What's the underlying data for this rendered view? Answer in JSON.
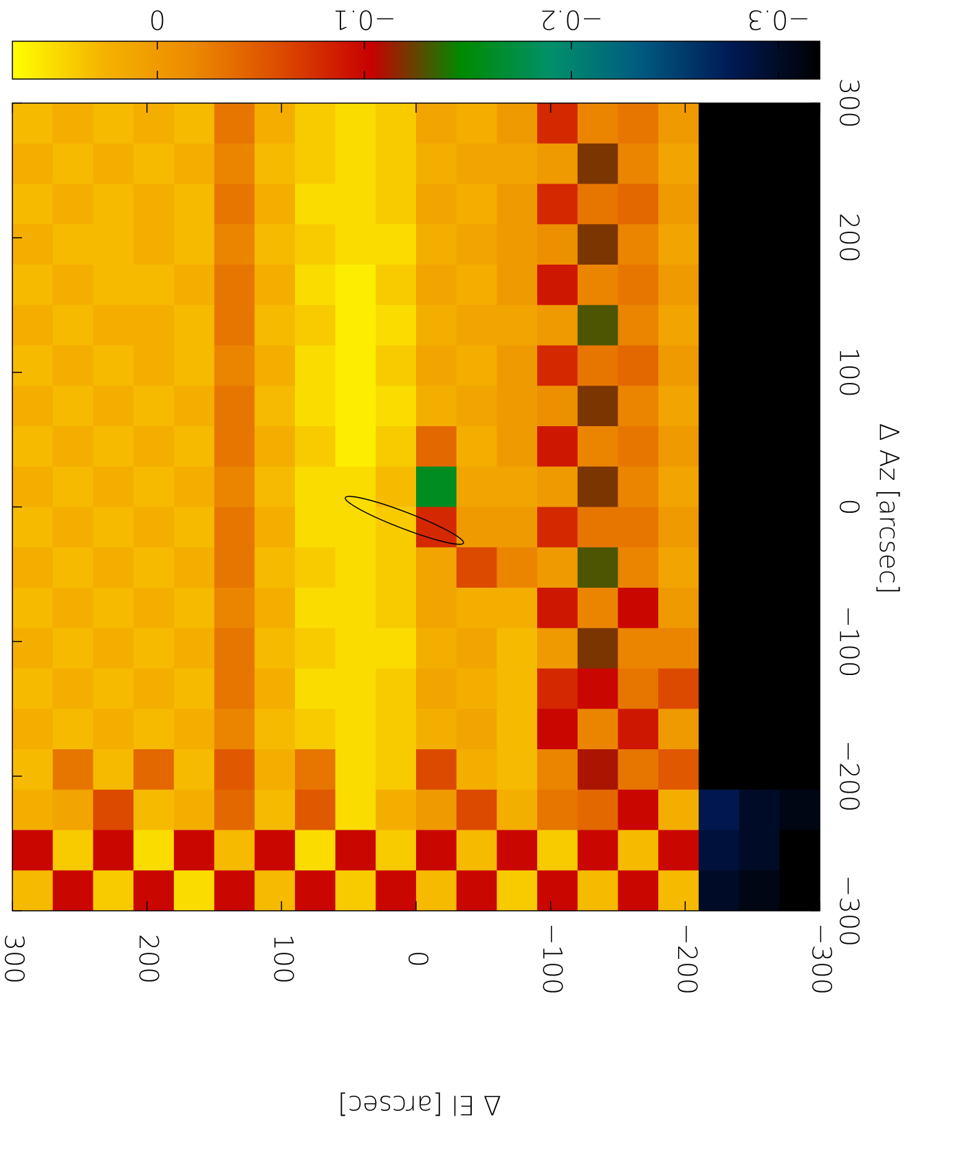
{
  "chart_data": {
    "type": "heatmap",
    "xlabel": "Δ El [arcsec]",
    "ylabel": "Δ Az [arcsec]",
    "xlim": [
      300,
      -300
    ],
    "ylim": [
      -300,
      300
    ],
    "xticks": [
      300,
      200,
      100,
      0,
      {
        "value": -100,
        "label": "−100"
      },
      {
        "value": -200,
        "label": "−200"
      },
      {
        "value": -300,
        "label": "−300"
      }
    ],
    "yticks": [
      {
        "value": -300,
        "label": "−300"
      },
      {
        "value": -200,
        "label": "−200"
      },
      {
        "value": -100,
        "label": "−100"
      },
      0,
      100,
      200,
      300
    ],
    "x": [
      285,
      255,
      225,
      195,
      165,
      135,
      105,
      75,
      45,
      15,
      -15,
      -45,
      -75,
      -105,
      -135,
      -165,
      -195,
      -225,
      -255,
      -285
    ],
    "y": [
      285,
      255,
      225,
      195,
      165,
      135,
      105,
      75,
      45,
      15,
      -15,
      -45,
      -75,
      -105,
      -135,
      -165,
      -195,
      -225,
      -255,
      -285
    ],
    "z": [
      [
        0.03,
        0.02,
        0.03,
        0.02,
        0.03,
        -0.03,
        0.02,
        0.04,
        0.05,
        0.04,
        0.01,
        0.02,
        0.0,
        -0.08,
        -0.02,
        -0.03,
        0.0,
        -0.32,
        -0.32,
        -0.32
      ],
      [
        0.02,
        0.03,
        0.02,
        0.03,
        0.02,
        -0.02,
        0.03,
        0.04,
        0.05,
        0.04,
        0.02,
        0.01,
        0.01,
        0.0,
        -0.12,
        -0.02,
        0.01,
        -0.32,
        -0.32,
        -0.32
      ],
      [
        0.03,
        0.02,
        0.03,
        0.02,
        0.03,
        -0.03,
        0.02,
        0.05,
        0.05,
        0.04,
        0.01,
        0.02,
        0.0,
        -0.08,
        -0.03,
        -0.04,
        0.0,
        -0.32,
        -0.32,
        -0.32
      ],
      [
        0.02,
        0.03,
        0.03,
        0.02,
        0.03,
        -0.02,
        0.03,
        0.04,
        0.05,
        0.05,
        0.02,
        0.01,
        0.0,
        -0.01,
        -0.12,
        -0.02,
        0.01,
        -0.32,
        -0.32,
        -0.32
      ],
      [
        0.03,
        0.02,
        0.03,
        0.03,
        0.02,
        -0.03,
        0.02,
        0.05,
        0.06,
        0.04,
        0.01,
        0.02,
        0.0,
        -0.09,
        -0.02,
        -0.03,
        0.0,
        -0.32,
        -0.32,
        -0.32
      ],
      [
        0.02,
        0.03,
        0.02,
        0.02,
        0.03,
        -0.03,
        0.03,
        0.04,
        0.06,
        0.05,
        0.02,
        0.01,
        0.01,
        0.0,
        -0.13,
        -0.02,
        0.01,
        -0.32,
        -0.32,
        -0.32
      ],
      [
        0.03,
        0.02,
        0.03,
        0.02,
        0.03,
        -0.02,
        0.02,
        0.05,
        0.06,
        0.04,
        0.01,
        0.02,
        0.0,
        -0.08,
        -0.03,
        -0.04,
        0.0,
        -0.32,
        -0.32,
        -0.32
      ],
      [
        0.02,
        0.03,
        0.02,
        0.03,
        0.02,
        -0.03,
        0.03,
        0.05,
        0.06,
        0.05,
        0.02,
        0.01,
        0.0,
        -0.01,
        -0.12,
        -0.02,
        0.01,
        -0.32,
        -0.32,
        -0.32
      ],
      [
        0.03,
        0.02,
        0.03,
        0.02,
        0.03,
        -0.03,
        0.02,
        0.04,
        0.06,
        0.04,
        -0.04,
        0.02,
        0.0,
        -0.09,
        -0.02,
        -0.03,
        0.0,
        -0.32,
        -0.32,
        -0.32
      ],
      [
        0.02,
        0.03,
        0.02,
        0.03,
        0.02,
        -0.02,
        0.03,
        0.05,
        0.05,
        0.03,
        -0.16,
        0.01,
        0.01,
        0.0,
        -0.12,
        -0.02,
        0.01,
        -0.32,
        -0.32,
        -0.32
      ],
      [
        0.03,
        0.02,
        0.03,
        0.02,
        0.03,
        -0.03,
        0.02,
        0.05,
        0.05,
        0.04,
        -0.08,
        0.0,
        0.0,
        -0.08,
        -0.03,
        -0.03,
        0.0,
        -0.32,
        -0.32,
        -0.32
      ],
      [
        0.02,
        0.03,
        0.02,
        0.03,
        0.02,
        -0.03,
        0.03,
        0.04,
        0.05,
        0.04,
        0.01,
        -0.06,
        -0.02,
        0.0,
        -0.13,
        -0.02,
        0.01,
        -0.32,
        -0.32,
        -0.32
      ],
      [
        0.03,
        0.02,
        0.03,
        0.02,
        0.03,
        -0.02,
        0.02,
        0.05,
        0.05,
        0.04,
        0.01,
        0.02,
        0.02,
        -0.09,
        -0.02,
        -0.1,
        0.0,
        -0.32,
        -0.32,
        -0.32
      ],
      [
        0.02,
        0.03,
        0.02,
        0.03,
        0.02,
        -0.03,
        0.03,
        0.04,
        0.05,
        0.05,
        0.02,
        0.01,
        0.03,
        0.0,
        -0.12,
        -0.02,
        -0.02,
        -0.32,
        -0.32,
        -0.32
      ],
      [
        0.03,
        0.02,
        0.03,
        0.02,
        0.03,
        -0.03,
        0.02,
        0.05,
        0.05,
        0.04,
        0.01,
        0.02,
        0.03,
        -0.08,
        -0.1,
        -0.03,
        -0.06,
        -0.32,
        -0.32,
        -0.32
      ],
      [
        0.02,
        0.03,
        0.02,
        0.03,
        0.02,
        -0.02,
        0.03,
        0.04,
        0.05,
        0.04,
        0.02,
        0.01,
        0.03,
        -0.1,
        -0.02,
        -0.09,
        0.0,
        -0.32,
        -0.32,
        -0.32
      ],
      [
        0.03,
        -0.03,
        0.03,
        -0.04,
        0.03,
        -0.05,
        0.02,
        -0.03,
        0.05,
        0.04,
        -0.06,
        0.02,
        0.03,
        -0.02,
        -0.11,
        -0.03,
        -0.05,
        -0.32,
        -0.32,
        -0.32
      ],
      [
        0.02,
        0.01,
        -0.06,
        0.03,
        0.02,
        -0.04,
        0.03,
        -0.05,
        0.05,
        0.02,
        0.0,
        -0.06,
        0.02,
        -0.03,
        -0.04,
        -0.1,
        0.02,
        -0.28,
        -0.3,
        -0.31
      ],
      [
        -0.1,
        0.04,
        -0.1,
        0.05,
        -0.1,
        0.03,
        -0.1,
        0.05,
        -0.1,
        0.04,
        -0.1,
        0.03,
        -0.1,
        0.04,
        -0.1,
        0.03,
        -0.1,
        -0.29,
        -0.3,
        -0.32
      ],
      [
        0.03,
        -0.1,
        0.04,
        -0.1,
        0.05,
        -0.1,
        0.03,
        -0.1,
        0.04,
        -0.1,
        0.03,
        -0.1,
        0.04,
        -0.1,
        0.03,
        -0.1,
        0.03,
        -0.3,
        -0.31,
        -0.32
      ]
    ],
    "clim": [
      0.07,
      -0.32
    ],
    "cticks": [
      0,
      {
        "value": -0.1,
        "label": "−0.1"
      },
      {
        "value": -0.2,
        "label": "−0.2"
      },
      {
        "value": -0.3,
        "label": "−0.3"
      }
    ],
    "colormap": [
      "#ffff00",
      "#f5b400",
      "#ec8a00",
      "#dc4a00",
      "#c80000",
      "#008a00",
      "#00906a",
      "#005a80",
      "#001a55",
      "#000000"
    ]
  }
}
